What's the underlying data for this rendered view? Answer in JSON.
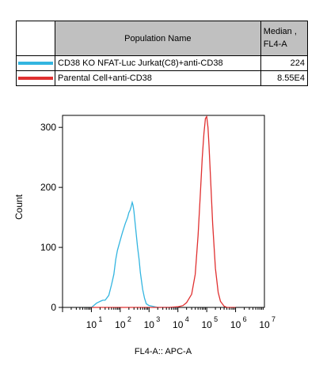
{
  "legend": {
    "header_name": "Population Name",
    "header_median_line1": "Median ,",
    "header_median_line2": "FL4-A",
    "rows": [
      {
        "label": "CD38 KO NFAT-Luc Jurkat(C8)+anti-CD38",
        "median": "224",
        "color": "#33b5e0"
      },
      {
        "label": "Parental Cell+anti-CD38",
        "median": "8.55E4",
        "color": "#e03030"
      }
    ]
  },
  "chart_data": {
    "type": "area",
    "xlabel": "FL4-A:: APC-A",
    "ylabel": "Count",
    "x_scale": "log",
    "xlim": [
      1,
      10000000
    ],
    "ylim": [
      0,
      320
    ],
    "y_ticks": [
      0,
      100,
      200,
      300
    ],
    "x_tick_labels": [
      {
        "base": "10",
        "exp": "1"
      },
      {
        "base": "10",
        "exp": "2"
      },
      {
        "base": "10",
        "exp": "3"
      },
      {
        "base": "10",
        "exp": "4"
      },
      {
        "base": "10",
        "exp": "5"
      },
      {
        "base": "10",
        "exp": "6"
      },
      {
        "base": "10",
        "exp": "7"
      }
    ],
    "series": [
      {
        "color": "#33b5e0",
        "x": [
          10,
          12,
          15,
          20,
          25,
          30,
          40,
          50,
          60,
          70,
          80,
          100,
          120,
          150,
          180,
          200,
          220,
          240,
          260,
          280,
          300,
          330,
          360,
          400,
          450,
          500,
          600,
          700,
          800,
          1000,
          1300,
          1600,
          2000,
          3000,
          5000,
          10000
        ],
        "y": [
          0,
          3,
          7,
          10,
          12,
          12,
          20,
          38,
          55,
          80,
          95,
          112,
          125,
          140,
          150,
          158,
          162,
          168,
          175,
          170,
          160,
          140,
          122,
          100,
          80,
          58,
          30,
          15,
          6,
          3,
          2,
          1,
          0,
          0,
          0,
          0
        ]
      },
      {
        "color": "#e03030",
        "x": [
          10,
          100,
          1000,
          5000,
          10000,
          15000,
          20000,
          30000,
          40000,
          50000,
          60000,
          70000,
          80000,
          90000,
          100000,
          110000,
          120000,
          140000,
          160000,
          200000,
          250000,
          300000,
          400000,
          500000,
          1000000
        ],
        "y": [
          0,
          0,
          0,
          0,
          1,
          3,
          8,
          22,
          55,
          120,
          190,
          250,
          290,
          315,
          318,
          300,
          270,
          200,
          140,
          65,
          25,
          10,
          2,
          0,
          0
        ]
      }
    ]
  }
}
